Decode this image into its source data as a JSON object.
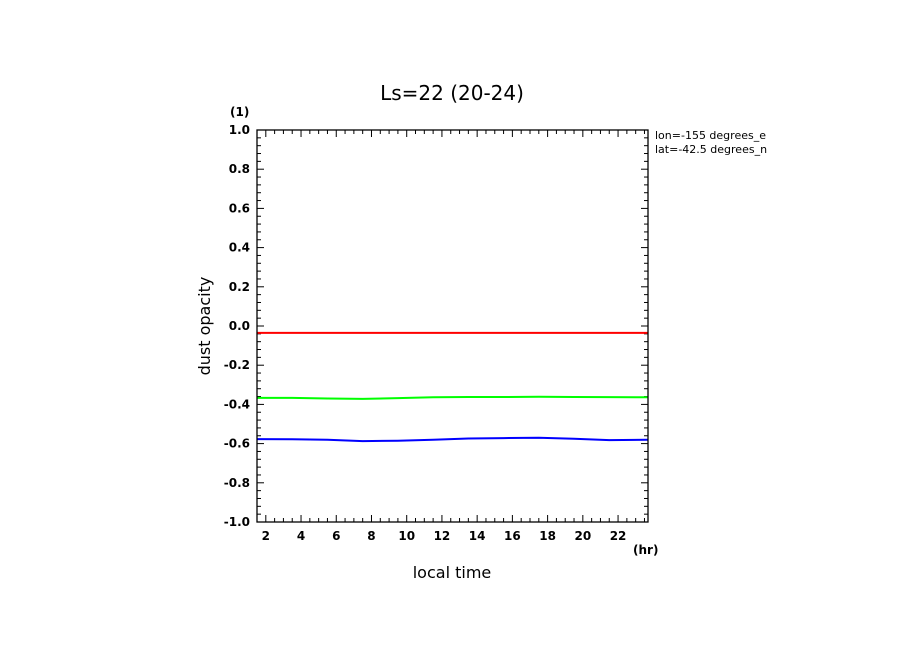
{
  "chart_data": {
    "type": "line",
    "title": "Ls=22 (20-24)",
    "xlabel": "local time",
    "ylabel": "dust opacity",
    "x_unit": "(hr)",
    "y_unit": "(1)",
    "xlim": [
      1.5,
      23.7
    ],
    "ylim": [
      -1.0,
      1.0
    ],
    "x_ticks": [
      2,
      4,
      6,
      8,
      10,
      12,
      14,
      16,
      18,
      20,
      22
    ],
    "x_tick_labels": [
      "2",
      "4",
      "6",
      "8",
      "10",
      "12",
      "14",
      "16",
      "18",
      "20",
      "22"
    ],
    "y_ticks": [
      -1.0,
      -0.8,
      -0.6,
      -0.4,
      -0.2,
      0.0,
      0.2,
      0.4,
      0.6,
      0.8,
      1.0
    ],
    "y_tick_labels": [
      "-1.0",
      "-0.8",
      "-0.6",
      "-0.4",
      "-0.2",
      "0.0",
      "0.2",
      "0.4",
      "0.6",
      "0.8",
      "1.0"
    ],
    "annotations": [
      "lon=-155 degrees_e",
      "lat=-42.5 degrees_n"
    ],
    "x": [
      1.5,
      3.5,
      5.5,
      7.5,
      9.5,
      11.5,
      13.5,
      15.5,
      17.5,
      19.5,
      21.5,
      23.7
    ],
    "series": [
      {
        "color": "#ff0000",
        "values": [
          -0.035,
          -0.035,
          -0.035,
          -0.035,
          -0.035,
          -0.035,
          -0.035,
          -0.035,
          -0.035,
          -0.035,
          -0.035,
          -0.035
        ]
      },
      {
        "color": "#00ff00",
        "values": [
          -0.367,
          -0.367,
          -0.37,
          -0.372,
          -0.368,
          -0.364,
          -0.362,
          -0.362,
          -0.361,
          -0.362,
          -0.363,
          -0.364
        ]
      },
      {
        "color": "#0000ff",
        "values": [
          -0.577,
          -0.578,
          -0.58,
          -0.587,
          -0.585,
          -0.58,
          -0.574,
          -0.572,
          -0.57,
          -0.575,
          -0.582,
          -0.58
        ]
      }
    ]
  }
}
